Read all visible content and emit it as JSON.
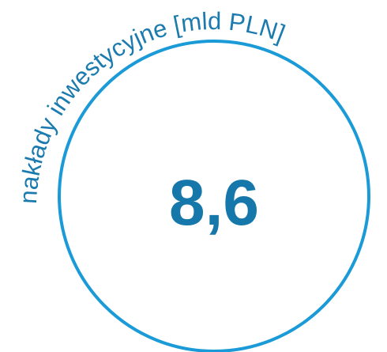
{
  "label": "nakłady inwestycyjne [mld PLN]",
  "value": "8,6"
}
